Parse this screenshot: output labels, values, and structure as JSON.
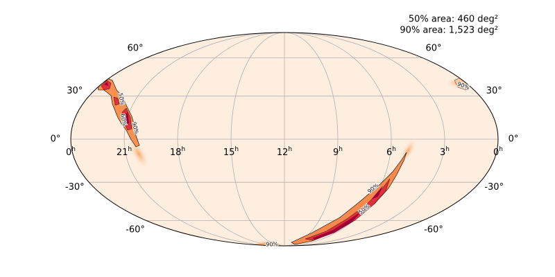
{
  "annotations": [
    "50% area: 460 deg²",
    "90% area: 1,523 deg²"
  ],
  "dec_ticks": [
    {
      "value": 60,
      "label": "60°"
    },
    {
      "value": 30,
      "label": "30°"
    },
    {
      "value": 0,
      "label": "0°"
    },
    {
      "value": -30,
      "label": "-30°"
    },
    {
      "value": -60,
      "label": "-60°"
    }
  ],
  "ra_ticks": [
    {
      "value": 24,
      "label": "0"
    },
    {
      "value": 21,
      "label": "21"
    },
    {
      "value": 18,
      "label": "18"
    },
    {
      "value": 15,
      "label": "15"
    },
    {
      "value": 12,
      "label": "12"
    },
    {
      "value": 9,
      "label": "9"
    },
    {
      "value": 6,
      "label": "6"
    },
    {
      "value": 3,
      "label": "3"
    },
    {
      "value": 0,
      "label": "0"
    }
  ],
  "ra_unit": "h",
  "contour_labels": [
    "50%",
    "60%",
    "90%",
    "90%",
    "90%",
    "50%",
    "90%"
  ]
}
